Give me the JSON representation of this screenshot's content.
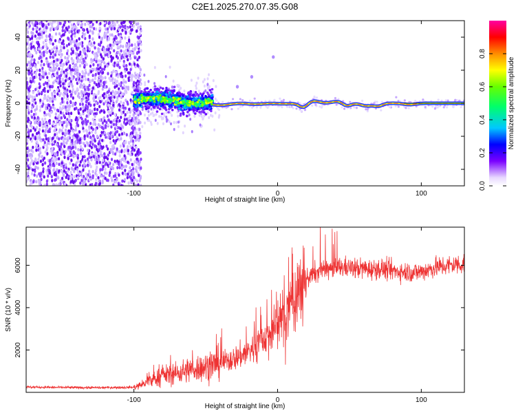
{
  "title": "C2E1.2025.270.07.35.G08",
  "chart_data": [
    {
      "type": "heatmap",
      "title": "C2E1.2025.270.07.35.G08",
      "xlabel": "Height of straight line (km)",
      "ylabel": "Frequency (Hz)",
      "xlim": [
        -175,
        130
      ],
      "ylim": [
        -50,
        50
      ],
      "xticks": [
        -100,
        0,
        100
      ],
      "yticks": [
        -40,
        -20,
        0,
        20,
        40
      ],
      "colorbar": {
        "label": "Normalized spectral amplitude",
        "range": [
          0.0,
          1.0
        ],
        "ticks": [
          0.0,
          0.2,
          0.4,
          0.6,
          0.8
        ],
        "colors": [
          "#f5f0ff",
          "#6e00ff",
          "#0000ff",
          "#00b4ff",
          "#00ff7a",
          "#55ff00",
          "#ffff00",
          "#ff8c00",
          "#ff0000",
          "#ff00a0"
        ]
      },
      "regions": [
        {
          "name": "scattered noise",
          "x_range": [
            -175,
            -95
          ],
          "freq_range": [
            -50,
            50
          ],
          "amplitude": 0.05
        },
        {
          "name": "broadened signal",
          "x_range": [
            -100,
            -45
          ],
          "freq_range": [
            -5,
            7
          ],
          "amplitude": 0.5
        },
        {
          "name": "narrow tone",
          "x_range": [
            -45,
            130
          ],
          "freq_center": 0,
          "amplitude": 1.0
        }
      ],
      "spur_points": [
        {
          "x": -28,
          "freq": 10
        },
        {
          "x": -18,
          "freq": 16
        },
        {
          "x": -3,
          "freq": 28
        }
      ]
    },
    {
      "type": "line",
      "xlabel": "Height of straight line (km)",
      "ylabel": "SNR (10 * v/v)",
      "xlim": [
        -175,
        130
      ],
      "ylim": [
        0,
        7800
      ],
      "xticks": [
        -100,
        0,
        100
      ],
      "yticks": [
        2000,
        4000,
        6000
      ],
      "series": [
        {
          "name": "SNR",
          "color": "#ee3333",
          "x": [
            -175,
            -150,
            -125,
            -100,
            -95,
            -90,
            -85,
            -80,
            -75,
            -70,
            -65,
            -60,
            -55,
            -50,
            -45,
            -40,
            -35,
            -30,
            -25,
            -20,
            -15,
            -10,
            -5,
            0,
            5,
            10,
            15,
            20,
            25,
            30,
            35,
            40,
            45,
            50,
            55,
            60,
            65,
            70,
            75,
            80,
            85,
            90,
            95,
            100,
            105,
            110,
            115,
            120,
            125,
            130
          ],
          "values": [
            250,
            230,
            220,
            240,
            350,
            500,
            650,
            800,
            850,
            900,
            1000,
            1100,
            1150,
            1200,
            1300,
            1400,
            1500,
            1600,
            1750,
            1950,
            2200,
            2500,
            2800,
            3200,
            3700,
            4300,
            4900,
            5400,
            5600,
            5750,
            5800,
            5850,
            5900,
            5900,
            5850,
            5850,
            5800,
            5850,
            5800,
            5750,
            5700,
            5700,
            5650,
            5700,
            5800,
            5900,
            5950,
            6000,
            6050,
            6050
          ]
        }
      ]
    }
  ]
}
